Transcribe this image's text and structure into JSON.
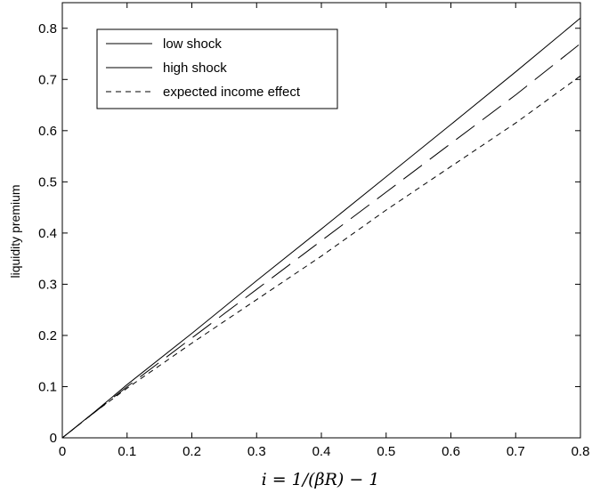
{
  "chart_data": {
    "type": "line",
    "title": "",
    "xlabel": "i = 1/(βR) − 1",
    "ylabel": "liquidity premium",
    "xlim": [
      0,
      0.8
    ],
    "ylim": [
      0,
      0.85
    ],
    "xticks": [
      0,
      0.1,
      0.2,
      0.3,
      0.4,
      0.5,
      0.6,
      0.7,
      0.8
    ],
    "yticks": [
      0,
      0.1,
      0.2,
      0.3,
      0.4,
      0.5,
      0.6,
      0.7,
      0.8
    ],
    "xtick_labels": [
      "0",
      "0.1",
      "0.2",
      "0.3",
      "0.4",
      "0.5",
      "0.6",
      "0.7",
      "0.8"
    ],
    "ytick_labels": [
      "0",
      "0.1",
      "0.2",
      "0.3",
      "0.4",
      "0.5",
      "0.6",
      "0.7",
      "0.8"
    ],
    "grid": false,
    "legend_position": "top-left",
    "series": [
      {
        "name": "low shock",
        "style": "solid",
        "color": "#000000",
        "x": [
          0,
          0.05,
          0.1,
          0.2,
          0.3,
          0.4,
          0.5,
          0.6,
          0.7,
          0.8
        ],
        "y": [
          0,
          0.051,
          0.104,
          0.204,
          0.307,
          0.408,
          0.51,
          0.612,
          0.715,
          0.82
        ]
      },
      {
        "name": "high shock",
        "style": "long-dash",
        "color": "#000000",
        "x": [
          0,
          0.05,
          0.1,
          0.2,
          0.3,
          0.4,
          0.5,
          0.6,
          0.7,
          0.8
        ],
        "y": [
          0,
          0.05,
          0.1,
          0.195,
          0.29,
          0.385,
          0.48,
          0.575,
          0.67,
          0.77
        ]
      },
      {
        "name": "expected income effect",
        "style": "short-dash",
        "color": "#000000",
        "x": [
          0,
          0.05,
          0.1,
          0.2,
          0.3,
          0.4,
          0.5,
          0.6,
          0.7,
          0.8
        ],
        "y": [
          0,
          0.05,
          0.097,
          0.185,
          0.27,
          0.355,
          0.445,
          0.53,
          0.615,
          0.707
        ]
      }
    ]
  }
}
